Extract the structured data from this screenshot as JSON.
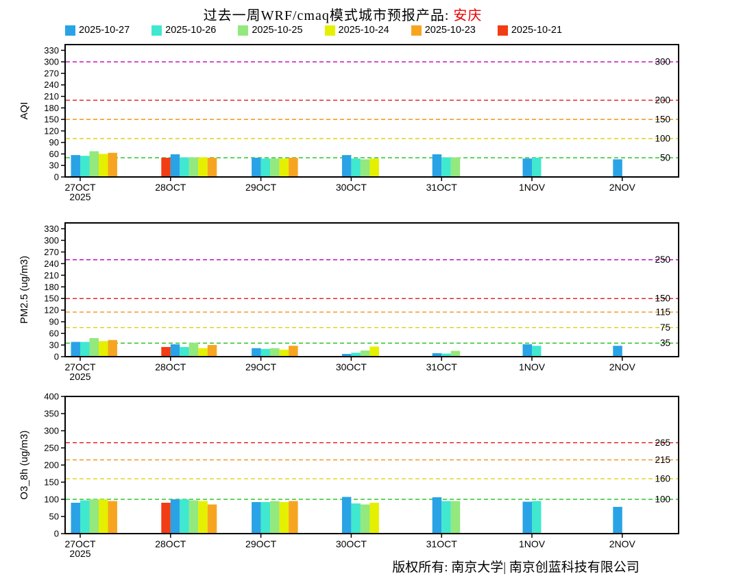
{
  "title": {
    "prefix": "过去一周WRF/cmaq模式城市预报产品: ",
    "city": "安庆"
  },
  "footer": "版权所有: 南京大学| 南京创蓝科技有限公司",
  "legend": [
    {
      "label": "2025-10-27",
      "color": "#29a3e6"
    },
    {
      "label": "2025-10-26",
      "color": "#3fe8cf"
    },
    {
      "label": "2025-10-25",
      "color": "#93e87e"
    },
    {
      "label": "2025-10-24",
      "color": "#e4f000"
    },
    {
      "label": "2025-10-23",
      "color": "#f7a520"
    },
    {
      "label": "2025-10-21",
      "color": "#f23c14"
    }
  ],
  "chart_data": [
    {
      "type": "bar",
      "panel": "AQI",
      "ylabel": "AQI",
      "ylim": [
        0,
        345
      ],
      "yticks": [
        0,
        30,
        60,
        90,
        120,
        150,
        180,
        210,
        240,
        270,
        300,
        330
      ],
      "categories": [
        "27OCT",
        "28OCT",
        "29OCT",
        "30OCT",
        "31OCT",
        "1NOV",
        "2NOV"
      ],
      "grid": false,
      "legend_position": "top",
      "reference_lines": [
        {
          "value": 50,
          "label": "50",
          "color": "#00bb00"
        },
        {
          "value": 100,
          "label": "100",
          "color": "#ddcc00"
        },
        {
          "value": 150,
          "label": "150",
          "color": "#ee8800"
        },
        {
          "value": 200,
          "label": "200",
          "color": "#dd0000"
        },
        {
          "value": 300,
          "label": "300",
          "color": "#bb00bb"
        }
      ],
      "groups": [
        {
          "category": "27OCT",
          "sublabel": "2025",
          "bars": [
            {
              "date": "2025-10-27",
              "value": 57
            },
            {
              "date": "2025-10-26",
              "value": 55
            },
            {
              "date": "2025-10-25",
              "value": 67
            },
            {
              "date": "2025-10-24",
              "value": 60
            },
            {
              "date": "2025-10-23",
              "value": 63
            }
          ]
        },
        {
          "category": "28OCT",
          "bars": [
            {
              "date": "2025-10-21",
              "value": 50
            },
            {
              "date": "2025-10-27",
              "value": 59
            },
            {
              "date": "2025-10-26",
              "value": 51
            },
            {
              "date": "2025-10-25",
              "value": 51
            },
            {
              "date": "2025-10-24",
              "value": 51
            },
            {
              "date": "2025-10-23",
              "value": 50
            }
          ]
        },
        {
          "category": "29OCT",
          "bars": [
            {
              "date": "2025-10-27",
              "value": 50
            },
            {
              "date": "2025-10-26",
              "value": 48
            },
            {
              "date": "2025-10-25",
              "value": 48
            },
            {
              "date": "2025-10-24",
              "value": 48
            },
            {
              "date": "2025-10-23",
              "value": 50
            }
          ]
        },
        {
          "category": "30OCT",
          "bars": [
            {
              "date": "2025-10-27",
              "value": 57
            },
            {
              "date": "2025-10-26",
              "value": 48
            },
            {
              "date": "2025-10-25",
              "value": 46
            },
            {
              "date": "2025-10-24",
              "value": 48
            }
          ]
        },
        {
          "category": "31OCT",
          "bars": [
            {
              "date": "2025-10-27",
              "value": 59
            },
            {
              "date": "2025-10-26",
              "value": 51
            },
            {
              "date": "2025-10-25",
              "value": 51
            }
          ]
        },
        {
          "category": "1NOV",
          "bars": [
            {
              "date": "2025-10-27",
              "value": 48
            },
            {
              "date": "2025-10-26",
              "value": 50
            }
          ]
        },
        {
          "category": "2NOV",
          "bars": [
            {
              "date": "2025-10-27",
              "value": 46
            }
          ]
        }
      ]
    },
    {
      "type": "bar",
      "panel": "PM2.5",
      "ylabel": "PM2.5 (ug/m3)",
      "ylim": [
        0,
        345
      ],
      "yticks": [
        0,
        30,
        60,
        90,
        120,
        150,
        180,
        210,
        240,
        270,
        300,
        330
      ],
      "categories": [
        "27OCT",
        "28OCT",
        "29OCT",
        "30OCT",
        "31OCT",
        "1NOV",
        "2NOV"
      ],
      "grid": false,
      "reference_lines": [
        {
          "value": 35,
          "label": "35",
          "color": "#00bb00"
        },
        {
          "value": 75,
          "label": "75",
          "color": "#ddcc00"
        },
        {
          "value": 115,
          "label": "115",
          "color": "#ee8800"
        },
        {
          "value": 150,
          "label": "150",
          "color": "#dd0000"
        },
        {
          "value": 250,
          "label": "250",
          "color": "#bb00bb"
        }
      ],
      "groups": [
        {
          "category": "27OCT",
          "sublabel": "2025",
          "bars": [
            {
              "date": "2025-10-27",
              "value": 38
            },
            {
              "date": "2025-10-26",
              "value": 38
            },
            {
              "date": "2025-10-25",
              "value": 48
            },
            {
              "date": "2025-10-24",
              "value": 40
            },
            {
              "date": "2025-10-23",
              "value": 43
            }
          ]
        },
        {
          "category": "28OCT",
          "bars": [
            {
              "date": "2025-10-21",
              "value": 25
            },
            {
              "date": "2025-10-27",
              "value": 32
            },
            {
              "date": "2025-10-26",
              "value": 25
            },
            {
              "date": "2025-10-25",
              "value": 36
            },
            {
              "date": "2025-10-24",
              "value": 22
            },
            {
              "date": "2025-10-23",
              "value": 30
            }
          ]
        },
        {
          "category": "29OCT",
          "bars": [
            {
              "date": "2025-10-27",
              "value": 22
            },
            {
              "date": "2025-10-26",
              "value": 20
            },
            {
              "date": "2025-10-25",
              "value": 22
            },
            {
              "date": "2025-10-24",
              "value": 18
            },
            {
              "date": "2025-10-23",
              "value": 28
            }
          ]
        },
        {
          "category": "30OCT",
          "bars": [
            {
              "date": "2025-10-27",
              "value": 7
            },
            {
              "date": "2025-10-26",
              "value": 10
            },
            {
              "date": "2025-10-25",
              "value": 16
            },
            {
              "date": "2025-10-24",
              "value": 26
            }
          ]
        },
        {
          "category": "31OCT",
          "bars": [
            {
              "date": "2025-10-27",
              "value": 9
            },
            {
              "date": "2025-10-26",
              "value": 8
            },
            {
              "date": "2025-10-25",
              "value": 15
            }
          ]
        },
        {
          "category": "1NOV",
          "bars": [
            {
              "date": "2025-10-27",
              "value": 32
            },
            {
              "date": "2025-10-26",
              "value": 28
            }
          ]
        },
        {
          "category": "2NOV",
          "bars": [
            {
              "date": "2025-10-27",
              "value": 28
            }
          ]
        }
      ]
    },
    {
      "type": "bar",
      "panel": "O3_8h",
      "ylabel": "O3_8h (ug/m3)",
      "ylim": [
        0,
        400
      ],
      "yticks": [
        0,
        50,
        100,
        150,
        200,
        250,
        300,
        350,
        400
      ],
      "categories": [
        "27OCT",
        "28OCT",
        "29OCT",
        "30OCT",
        "31OCT",
        "1NOV",
        "2NOV"
      ],
      "grid": false,
      "reference_lines": [
        {
          "value": 100,
          "label": "100",
          "color": "#00bb00"
        },
        {
          "value": 160,
          "label": "160",
          "color": "#ddcc00"
        },
        {
          "value": 215,
          "label": "215",
          "color": "#ee8800"
        },
        {
          "value": 265,
          "label": "265",
          "color": "#dd0000"
        }
      ],
      "groups": [
        {
          "category": "27OCT",
          "sublabel": "2025",
          "bars": [
            {
              "date": "2025-10-27",
              "value": 90
            },
            {
              "date": "2025-10-26",
              "value": 97
            },
            {
              "date": "2025-10-25",
              "value": 100
            },
            {
              "date": "2025-10-24",
              "value": 100
            },
            {
              "date": "2025-10-23",
              "value": 95
            }
          ]
        },
        {
          "category": "28OCT",
          "bars": [
            {
              "date": "2025-10-21",
              "value": 90
            },
            {
              "date": "2025-10-27",
              "value": 100
            },
            {
              "date": "2025-10-26",
              "value": 100
            },
            {
              "date": "2025-10-25",
              "value": 97
            },
            {
              "date": "2025-10-24",
              "value": 95
            },
            {
              "date": "2025-10-23",
              "value": 85
            }
          ]
        },
        {
          "category": "29OCT",
          "bars": [
            {
              "date": "2025-10-27",
              "value": 92
            },
            {
              "date": "2025-10-26",
              "value": 92
            },
            {
              "date": "2025-10-25",
              "value": 95
            },
            {
              "date": "2025-10-24",
              "value": 92
            },
            {
              "date": "2025-10-23",
              "value": 95
            }
          ]
        },
        {
          "category": "30OCT",
          "bars": [
            {
              "date": "2025-10-27",
              "value": 107
            },
            {
              "date": "2025-10-26",
              "value": 88
            },
            {
              "date": "2025-10-25",
              "value": 85
            },
            {
              "date": "2025-10-24",
              "value": 90
            }
          ]
        },
        {
          "category": "31OCT",
          "bars": [
            {
              "date": "2025-10-27",
              "value": 106
            },
            {
              "date": "2025-10-26",
              "value": 95
            },
            {
              "date": "2025-10-25",
              "value": 95
            }
          ]
        },
        {
          "category": "1NOV",
          "bars": [
            {
              "date": "2025-10-27",
              "value": 93
            },
            {
              "date": "2025-10-26",
              "value": 95
            }
          ]
        },
        {
          "category": "2NOV",
          "bars": [
            {
              "date": "2025-10-27",
              "value": 78
            }
          ]
        }
      ]
    }
  ]
}
